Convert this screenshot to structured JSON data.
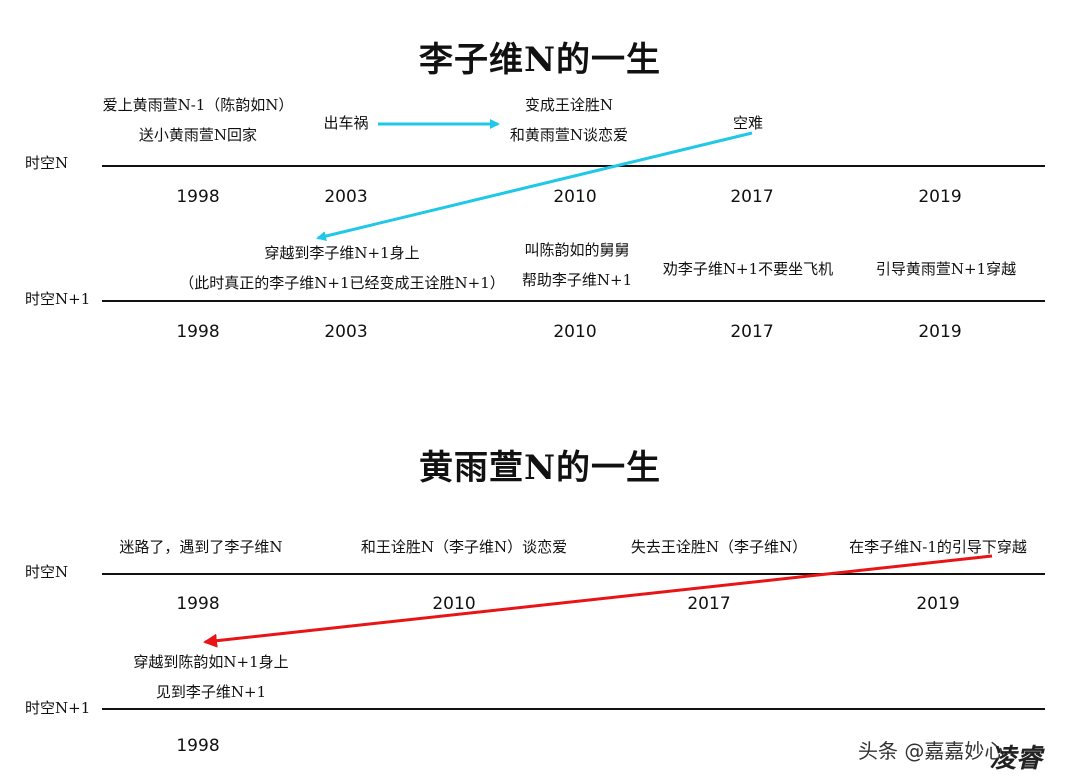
{
  "colors": {
    "arrow_cyan": "#1ec8e6",
    "arrow_red": "#e81416"
  },
  "section1": {
    "title": "李子维N的一生",
    "rowN": {
      "label": "时空N",
      "years": [
        "1998",
        "2003",
        "2010",
        "2017",
        "2019"
      ],
      "events": [
        {
          "lines": [
            "爱上黄雨萱N-1（陈韵如N）",
            "送小黄雨萱N回家"
          ]
        },
        {
          "lines": [
            "出车祸"
          ]
        },
        {
          "lines": [
            "变成王诠胜N",
            "和黄雨萱N谈恋爱"
          ]
        },
        {
          "lines": [
            "空难"
          ]
        }
      ]
    },
    "rowN1": {
      "label": "时空N+1",
      "years": [
        "1998",
        "2003",
        "2010",
        "2017",
        "2019"
      ],
      "events": [
        {
          "lines": [
            "穿越到李子维N+1身上",
            "（此时真正的李子维N+1已经变成王诠胜N+1）"
          ]
        },
        {
          "lines": [
            "叫陈韵如的舅舅",
            "帮助李子维N+1"
          ]
        },
        {
          "lines": [
            "劝李子维N+1不要坐飞机"
          ]
        },
        {
          "lines": [
            "引导黄雨萱N+1穿越"
          ]
        }
      ]
    }
  },
  "section2": {
    "title": "黄雨萱N的一生",
    "rowN": {
      "label": "时空N",
      "years": [
        "1998",
        "2010",
        "2017",
        "2019"
      ],
      "events": [
        {
          "lines": [
            "迷路了，遇到了李子维N"
          ]
        },
        {
          "lines": [
            "和王诠胜N（李子维N）谈恋爱"
          ]
        },
        {
          "lines": [
            "失去王诠胜N（李子维N）"
          ]
        },
        {
          "lines": [
            "在李子维N-1的引导下穿越"
          ]
        }
      ]
    },
    "rowN1": {
      "label": "时空N+1",
      "years": [
        "1998"
      ],
      "events": [
        {
          "lines": [
            "穿越到陈韵如N+1身上",
            "见到李子维N+1"
          ]
        }
      ]
    }
  },
  "watermark": {
    "prefix": "头条 @嘉嘉妙心",
    "signature": "凌睿"
  }
}
